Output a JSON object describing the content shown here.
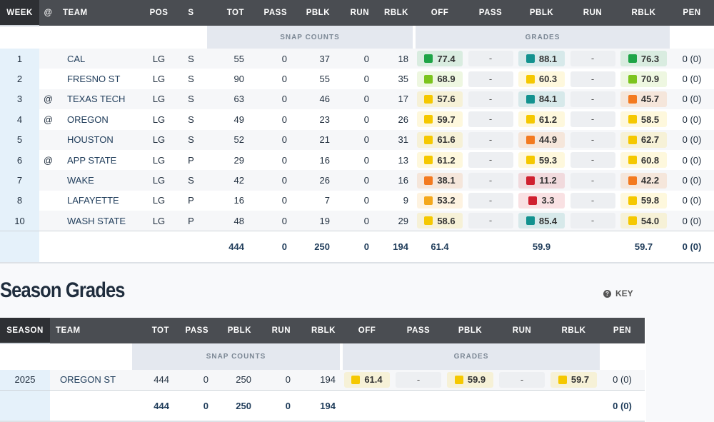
{
  "weekly": {
    "groups": {
      "snap": "SNAP COUNTS",
      "grades": "GRADES"
    },
    "headers": [
      "WEEK",
      "@",
      "TEAM",
      "POS",
      "S",
      "TOT",
      "PASS",
      "PBLK",
      "RUN",
      "RBLK",
      "OFF",
      "PASS",
      "PBLK",
      "RUN",
      "RBLK",
      "PEN"
    ],
    "rows": [
      [
        "1",
        "",
        "CAL",
        "LG",
        "S",
        "55",
        "0",
        "37",
        "0",
        "18",
        "77.4",
        "-",
        "88.1",
        "-",
        "76.3",
        "0 (0)"
      ],
      [
        "2",
        "",
        "FRESNO ST",
        "LG",
        "S",
        "90",
        "0",
        "55",
        "0",
        "35",
        "68.9",
        "-",
        "60.3",
        "-",
        "70.9",
        "0 (0)"
      ],
      [
        "3",
        "@",
        "TEXAS TECH",
        "LG",
        "S",
        "63",
        "0",
        "46",
        "0",
        "17",
        "57.6",
        "-",
        "84.1",
        "-",
        "45.7",
        "0 (0)"
      ],
      [
        "4",
        "@",
        "OREGON",
        "LG",
        "S",
        "49",
        "0",
        "23",
        "0",
        "26",
        "59.7",
        "-",
        "61.2",
        "-",
        "58.5",
        "0 (0)"
      ],
      [
        "5",
        "",
        "HOUSTON",
        "LG",
        "S",
        "52",
        "0",
        "21",
        "0",
        "31",
        "61.6",
        "-",
        "44.9",
        "-",
        "62.7",
        "0 (0)"
      ],
      [
        "6",
        "@",
        "APP STATE",
        "LG",
        "P",
        "29",
        "0",
        "16",
        "0",
        "13",
        "61.2",
        "-",
        "59.3",
        "-",
        "60.8",
        "0 (0)"
      ],
      [
        "7",
        "",
        "WAKE",
        "LG",
        "S",
        "42",
        "0",
        "26",
        "0",
        "16",
        "38.1",
        "-",
        "11.2",
        "-",
        "42.2",
        "0 (0)"
      ],
      [
        "8",
        "",
        "LAFAYETTE",
        "LG",
        "P",
        "16",
        "0",
        "7",
        "0",
        "9",
        "53.2",
        "-",
        "3.3",
        "-",
        "59.8",
        "0 (0)"
      ],
      [
        "10",
        "",
        "WASH STATE",
        "LG",
        "P",
        "48",
        "0",
        "19",
        "0",
        "29",
        "58.6",
        "-",
        "85.4",
        "-",
        "54.0",
        "0 (0)"
      ]
    ],
    "totals": [
      "",
      "",
      "",
      "",
      "",
      "444",
      "0",
      "250",
      "0",
      "194",
      "61.4",
      "",
      "59.9",
      "",
      "59.7",
      "0 (0)"
    ]
  },
  "season": {
    "title": "Season Grades",
    "key_label": "KEY",
    "groups": {
      "snap": "SNAP COUNTS",
      "grades": "GRADES"
    },
    "headers": [
      "SEASON",
      "TEAM",
      "TOT",
      "PASS",
      "PBLK",
      "RUN",
      "RBLK",
      "OFF",
      "PASS",
      "PBLK",
      "RUN",
      "RBLK",
      "PEN"
    ],
    "rows": [
      [
        "2025",
        "OREGON ST",
        "444",
        "0",
        "250",
        "0",
        "194",
        "61.4",
        "-",
        "59.9",
        "-",
        "59.7",
        "0 (0)"
      ]
    ],
    "totals": [
      "",
      "",
      "444",
      "0",
      "250",
      "0",
      "194",
      "",
      "",
      "",
      "",
      "",
      "0 (0)"
    ]
  },
  "grade_colors": {
    "elite": "#12928f",
    "high": "#1ea446",
    "good": "#7cc41e",
    "avg": "#f5c800",
    "below": "#f4a81c",
    "poor": "#f37a1f",
    "bad": "#d0202f"
  }
}
